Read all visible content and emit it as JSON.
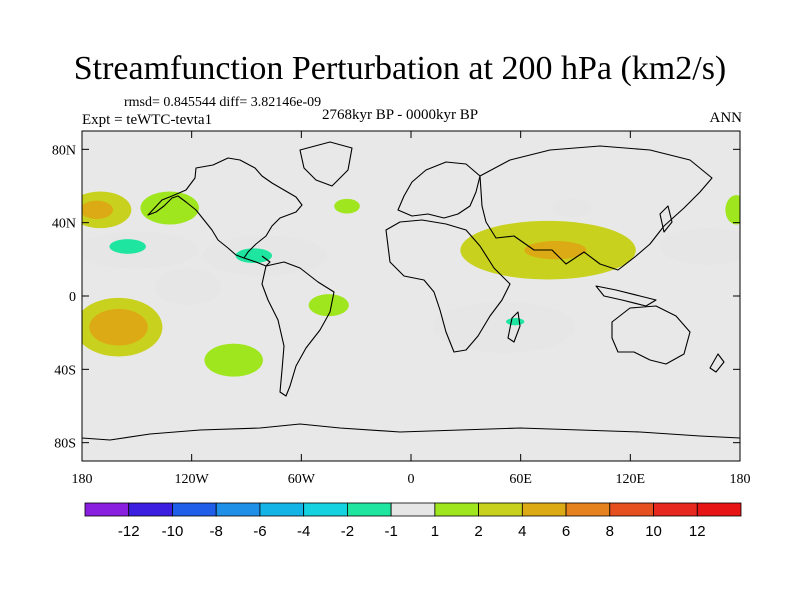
{
  "title": "Streamfunction Perturbation at 200 hPa (km2/s)",
  "stats_label": "rmsd= 0.845544 diff= 3.82146e-09",
  "period_label": "2768kyr BP - 0000kyr BP",
  "experiment_label": "Expt = teWTC-tevta1",
  "season_label": "ANN",
  "chart_data": {
    "type": "heatmap",
    "title": "Streamfunction Perturbation at 200 hPa (km2/s)",
    "projection": "cylindrical-equidistant",
    "xlim": [
      -180,
      180
    ],
    "ylim": [
      -90,
      90
    ],
    "x_ticks": [
      {
        "value": -180,
        "label": "180"
      },
      {
        "value": -120,
        "label": "120W"
      },
      {
        "value": -60,
        "label": "60W"
      },
      {
        "value": 0,
        "label": "0"
      },
      {
        "value": 60,
        "label": "60E"
      },
      {
        "value": 120,
        "label": "120E"
      },
      {
        "value": 180,
        "label": "180"
      }
    ],
    "y_ticks": [
      {
        "value": 80,
        "label": "80N"
      },
      {
        "value": 40,
        "label": "40N"
      },
      {
        "value": 0,
        "label": "0"
      },
      {
        "value": -40,
        "label": "40S"
      },
      {
        "value": -80,
        "label": "80S"
      }
    ],
    "colorbar": {
      "labels": [
        "-12",
        "-10",
        "-8",
        "-6",
        "-4",
        "-2",
        "-1",
        "1",
        "2",
        "4",
        "6",
        "8",
        "10",
        "12"
      ],
      "colors": [
        "#8a1ee0",
        "#3b1ee0",
        "#1e5ee8",
        "#1e90e8",
        "#14b4e6",
        "#14d2e0",
        "#1ee6a0",
        "#e6e6e6",
        "#a0e61e",
        "#c8d21e",
        "#dcaa14",
        "#e6821e",
        "#e6501e",
        "#e6281e",
        "#e61414"
      ]
    },
    "features": [
      {
        "name": "north-pacific-east-positive",
        "lon": -170,
        "lat": 47,
        "rx": 17,
        "ry": 10,
        "level": 2
      },
      {
        "name": "north-pacific-east-core",
        "lon": -172,
        "lat": 47,
        "rx": 9,
        "ry": 5,
        "level": 4
      },
      {
        "name": "subtropical-pacific-negative",
        "lon": -150,
        "lat": 25,
        "rx": 34,
        "ry": 10,
        "level": -1
      },
      {
        "name": "subtropical-pacific-negative-core",
        "lon": -155,
        "lat": 27,
        "rx": 10,
        "ry": 4,
        "level": -2
      },
      {
        "name": "north-america-positive",
        "lon": -132,
        "lat": 48,
        "rx": 16,
        "ry": 9,
        "level": 1
      },
      {
        "name": "caribbean-negative",
        "lon": -80,
        "lat": 22,
        "rx": 34,
        "ry": 11,
        "level": -1
      },
      {
        "name": "caribbean-negative-core",
        "lon": -86,
        "lat": 22,
        "rx": 10,
        "ry": 4,
        "level": -2
      },
      {
        "name": "north-atlantic-positive",
        "lon": -35,
        "lat": 49,
        "rx": 7,
        "ry": 4,
        "level": 1
      },
      {
        "name": "east-pacific-equatorial-negative",
        "lon": -122,
        "lat": 5,
        "rx": 18,
        "ry": 10,
        "level": -1
      },
      {
        "name": "south-pacific-positive",
        "lon": -160,
        "lat": -17,
        "rx": 24,
        "ry": 16,
        "level": 2
      },
      {
        "name": "south-pacific-positive-core",
        "lon": -160,
        "lat": -17,
        "rx": 16,
        "ry": 10,
        "level": 4
      },
      {
        "name": "south-america-positive",
        "lon": -45,
        "lat": -5,
        "rx": 11,
        "ry": 6,
        "level": 1
      },
      {
        "name": "south-atlantic-positive",
        "lon": -97,
        "lat": -35,
        "rx": 16,
        "ry": 9,
        "level": 1
      },
      {
        "name": "south-asia-positive",
        "lon": 75,
        "lat": 25,
        "rx": 48,
        "ry": 16,
        "level": 2
      },
      {
        "name": "south-asia-positive-core",
        "lon": 79,
        "lat": 25,
        "rx": 17,
        "ry": 5,
        "level": 4
      },
      {
        "name": "indian-ocean-negative",
        "lon": 51,
        "lat": -17,
        "rx": 39,
        "ry": 14,
        "level": -1
      },
      {
        "name": "indian-ocean-negative-core",
        "lon": 57,
        "lat": -14,
        "rx": 5,
        "ry": 2,
        "level": -2
      },
      {
        "name": "central-asia-negative",
        "lon": 88,
        "lat": 48,
        "rx": 11,
        "ry": 5,
        "level": -1
      },
      {
        "name": "north-pacific-west-negative",
        "lon": 163,
        "lat": 27,
        "rx": 27,
        "ry": 10,
        "level": -1
      },
      {
        "name": "north-pacific-west-positive",
        "lon": 178,
        "lat": 47,
        "rx": 6,
        "ry": 8,
        "level": 1
      }
    ]
  }
}
